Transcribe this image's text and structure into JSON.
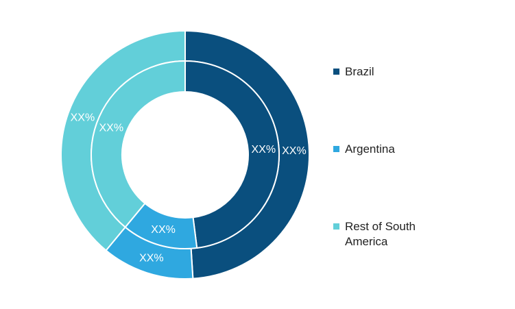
{
  "chart_data": {
    "type": "donut",
    "categories": [
      "Brazil",
      "Argentina",
      "Rest of South America"
    ],
    "colors": [
      "#0a4f7e",
      "#2fa8e0",
      "#62cfd9"
    ],
    "series": [
      {
        "values": [
          49,
          12,
          39
        ],
        "value_labels": [
          "XX%",
          "XX%",
          "XX%"
        ]
      },
      {
        "values": [
          48,
          13,
          39
        ],
        "value_labels": [
          "XX%",
          "XX%",
          "XX%"
        ]
      }
    ]
  }
}
